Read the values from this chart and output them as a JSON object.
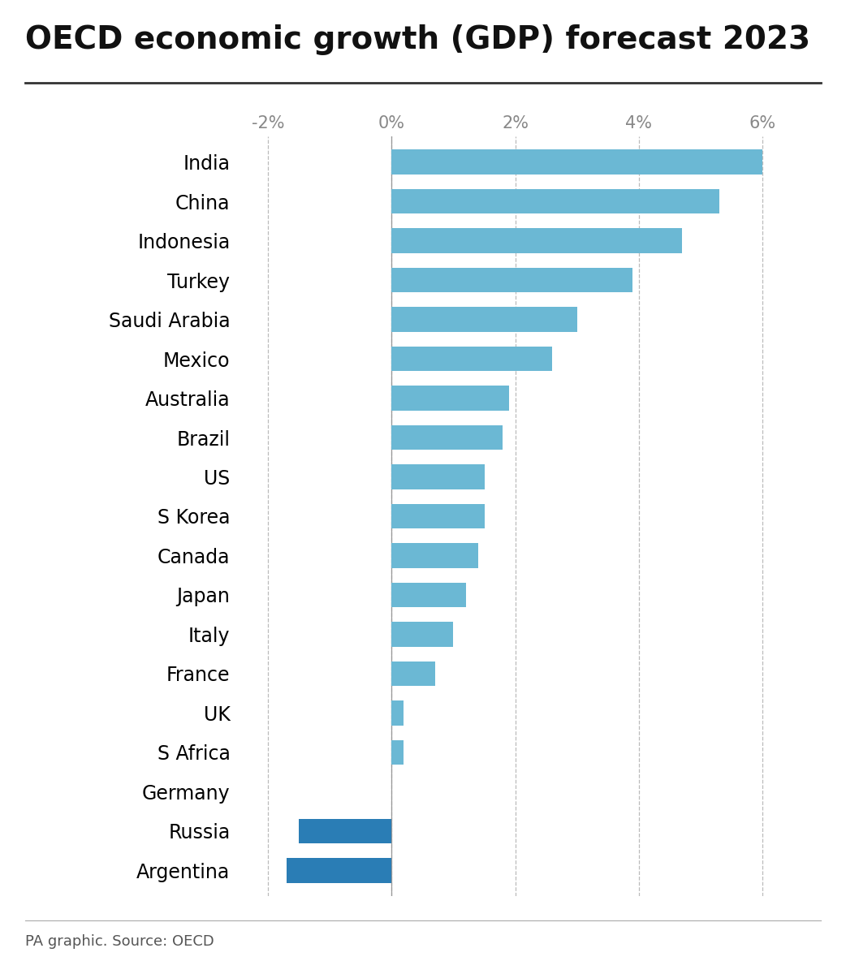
{
  "title": "OECD economic growth (GDP) forecast 2023",
  "source": "PA graphic. Source: OECD",
  "countries": [
    "India",
    "China",
    "Indonesia",
    "Turkey",
    "Saudi Arabia",
    "Mexico",
    "Australia",
    "Brazil",
    "US",
    "S Korea",
    "Canada",
    "Japan",
    "Italy",
    "France",
    "UK",
    "S Africa",
    "Germany",
    "Russia",
    "Argentina"
  ],
  "values": [
    6.0,
    5.3,
    4.7,
    3.9,
    3.0,
    2.6,
    1.9,
    1.8,
    1.5,
    1.5,
    1.4,
    1.2,
    1.0,
    0.7,
    0.2,
    0.2,
    0.0,
    -1.5,
    -1.7
  ],
  "positive_color": "#6bb8d4",
  "negative_color": "#2a7db5",
  "background_color": "#ffffff",
  "title_fontsize": 28,
  "label_fontsize": 17,
  "tick_fontsize": 15,
  "source_fontsize": 13,
  "xlim": [
    -2.5,
    6.8
  ],
  "xticks": [
    -2,
    0,
    2,
    4,
    6
  ],
  "xtick_labels": [
    "-2%",
    "0%",
    "2%",
    "4%",
    "6%"
  ]
}
